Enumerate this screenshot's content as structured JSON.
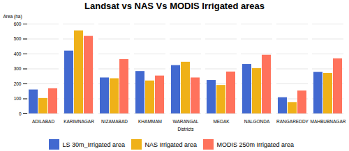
{
  "chart_data": {
    "type": "bar",
    "title": "Landsat vs NAS Vs MODIS Irrigated areas",
    "xlabel": "Districts",
    "ylabel": "Area (ha)",
    "categories": [
      "ADILABAD",
      "KARIMNAGAR",
      "NIZAMABAD",
      "KHAMMAM",
      "WARANGAL",
      "MEDAK",
      "NALGONDA",
      "RANGAREDDY",
      "MAHBUBNAGAR"
    ],
    "series": [
      {
        "name": "LS 30m_Irrigated area",
        "values": [
          160,
          420,
          240,
          283,
          323,
          223,
          330,
          108,
          278
        ]
      },
      {
        "name": "NAS Irrigated area",
        "values": [
          103,
          555,
          235,
          220,
          345,
          190,
          303,
          75,
          270
        ]
      },
      {
        "name": "MODIS 250m Irrigated area",
        "values": [
          168,
          518,
          363,
          253,
          240,
          280,
          392,
          153,
          368
        ]
      }
    ],
    "ylim": [
      0,
      600
    ],
    "yticks": [
      0,
      100,
      200,
      300,
      400,
      500,
      600
    ],
    "grid": true,
    "legend": "bottom"
  }
}
